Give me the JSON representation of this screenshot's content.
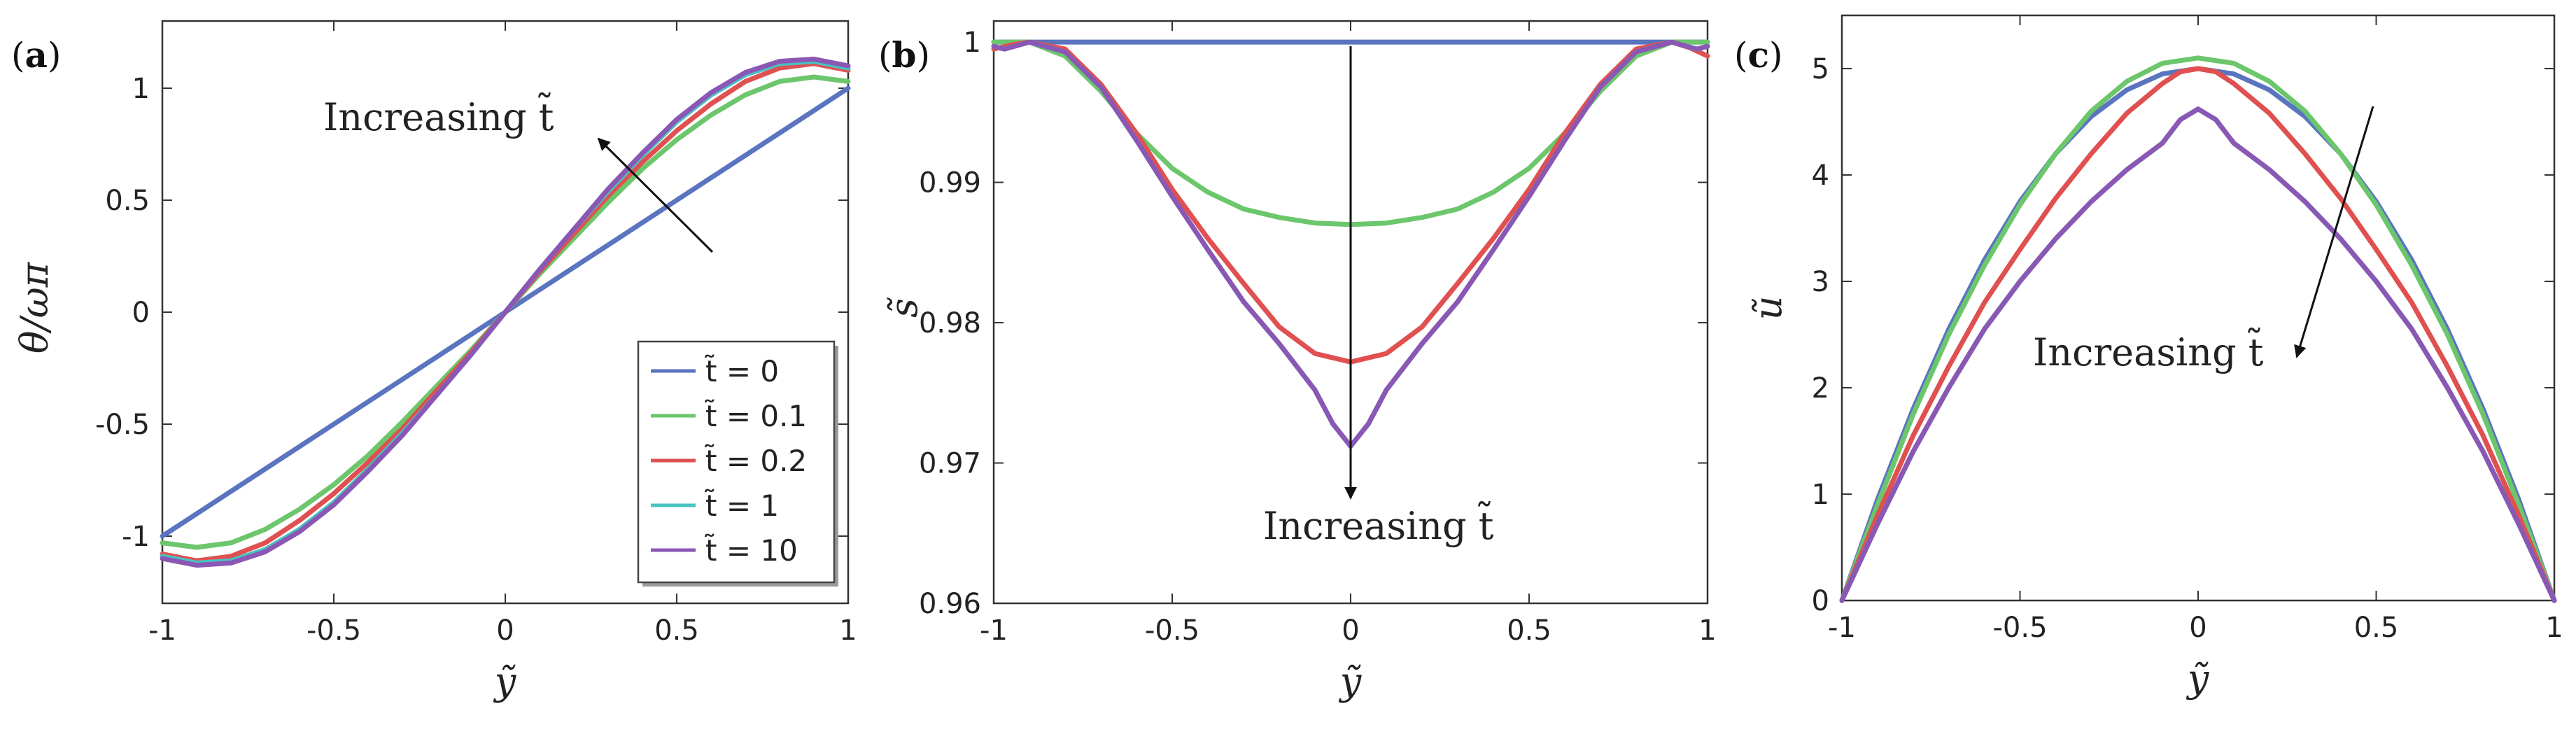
{
  "colors": {
    "t0": "#5a74c0",
    "t01": "#6cc66c",
    "t02": "#e05050",
    "t1": "#48c2c2",
    "t10": "#8a58b4",
    "arrow": "#111111"
  },
  "chart_data": [
    {
      "type": "line",
      "panel_label": "a",
      "ylabel": "θ/ωπ",
      "xlabel": "ỹ",
      "xlim": [
        -1,
        1
      ],
      "ylim": [
        -1.3,
        1.3
      ],
      "xticks": [
        "-1",
        "-0.5",
        "0",
        "0.5",
        "1"
      ],
      "yticks": [
        "-1",
        "-0.5",
        "0",
        "0.5",
        "1"
      ],
      "annotation": "Increasing t̃",
      "legend": [
        "t̃ = 0",
        "t̃ = 0.1",
        "t̃ = 0.2",
        "t̃ = 1",
        "t̃ = 10"
      ],
      "series": [
        {
          "name": "t̃ = 0",
          "color_key": "t0",
          "x": [
            -1,
            -0.5,
            0,
            0.5,
            1
          ],
          "y": [
            -1,
            -0.5,
            0,
            0.5,
            1
          ]
        },
        {
          "name": "t̃ = 0.1",
          "color_key": "t01",
          "x": [
            -1,
            -0.9,
            -0.8,
            -0.7,
            -0.6,
            -0.5,
            -0.4,
            -0.3,
            -0.2,
            -0.1,
            0,
            0.1,
            0.2,
            0.3,
            0.4,
            0.5,
            0.6,
            0.7,
            0.8,
            0.9,
            1
          ],
          "y": [
            -1.03,
            -1.05,
            -1.03,
            -0.97,
            -0.88,
            -0.77,
            -0.64,
            -0.49,
            -0.33,
            -0.17,
            0,
            0.17,
            0.33,
            0.49,
            0.64,
            0.77,
            0.88,
            0.97,
            1.03,
            1.05,
            1.03
          ]
        },
        {
          "name": "t̃ = 0.2",
          "color_key": "t02",
          "x": [
            -1,
            -0.9,
            -0.8,
            -0.7,
            -0.6,
            -0.5,
            -0.4,
            -0.3,
            -0.2,
            -0.1,
            0,
            0.1,
            0.2,
            0.3,
            0.4,
            0.5,
            0.6,
            0.7,
            0.8,
            0.9,
            1
          ],
          "y": [
            -1.08,
            -1.11,
            -1.09,
            -1.03,
            -0.93,
            -0.81,
            -0.67,
            -0.52,
            -0.35,
            -0.18,
            0,
            0.18,
            0.35,
            0.52,
            0.67,
            0.81,
            0.93,
            1.03,
            1.09,
            1.11,
            1.08
          ]
        },
        {
          "name": "t̃ = 1",
          "color_key": "t1",
          "x": [
            -1,
            -0.9,
            -0.8,
            -0.7,
            -0.6,
            -0.5,
            -0.4,
            -0.3,
            -0.2,
            -0.1,
            0,
            0.1,
            0.2,
            0.3,
            0.4,
            0.5,
            0.6,
            0.7,
            0.8,
            0.9,
            1
          ],
          "y": [
            -1.09,
            -1.12,
            -1.11,
            -1.06,
            -0.97,
            -0.85,
            -0.7,
            -0.54,
            -0.37,
            -0.19,
            0,
            0.19,
            0.37,
            0.54,
            0.7,
            0.85,
            0.97,
            1.06,
            1.11,
            1.12,
            1.09
          ]
        },
        {
          "name": "t̃ = 10",
          "color_key": "t10",
          "x": [
            -1,
            -0.9,
            -0.8,
            -0.7,
            -0.6,
            -0.5,
            -0.4,
            -0.3,
            -0.2,
            -0.1,
            0,
            0.1,
            0.2,
            0.3,
            0.4,
            0.5,
            0.6,
            0.7,
            0.8,
            0.9,
            1
          ],
          "y": [
            -1.1,
            -1.13,
            -1.12,
            -1.07,
            -0.98,
            -0.86,
            -0.71,
            -0.55,
            -0.37,
            -0.19,
            0,
            0.19,
            0.37,
            0.55,
            0.71,
            0.86,
            0.98,
            1.07,
            1.12,
            1.13,
            1.1
          ]
        }
      ]
    },
    {
      "type": "line",
      "panel_label": "b",
      "ylabel": "s̃",
      "xlabel": "ỹ",
      "xlim": [
        -1,
        1
      ],
      "ylim": [
        0.96,
        1.0015
      ],
      "xticks": [
        "-1",
        "-0.5",
        "0",
        "0.5",
        "1"
      ],
      "yticks": [
        "0.96",
        "0.97",
        "0.98",
        "0.99",
        "1"
      ],
      "annotation": "Increasing t̃",
      "series": [
        {
          "name": "t̃ = 0",
          "color_key": "t0",
          "x": [
            -1,
            1
          ],
          "y": [
            1,
            1
          ]
        },
        {
          "name": "t̃ = 0.1",
          "color_key": "t01",
          "x": [
            -1,
            -0.9,
            -0.8,
            -0.7,
            -0.6,
            -0.5,
            -0.4,
            -0.3,
            -0.2,
            -0.1,
            0,
            0.1,
            0.2,
            0.3,
            0.4,
            0.5,
            0.6,
            0.7,
            0.8,
            0.9,
            1
          ],
          "y": [
            1.0,
            1.0,
            0.999,
            0.9965,
            0.9935,
            0.991,
            0.9893,
            0.9881,
            0.9875,
            0.9871,
            0.987,
            0.9871,
            0.9875,
            0.9881,
            0.9893,
            0.991,
            0.9935,
            0.9965,
            0.999,
            1.0,
            1.0
          ]
        },
        {
          "name": "t̃ = 0.2",
          "color_key": "t02",
          "x": [
            -1,
            -0.95,
            -0.9,
            -0.8,
            -0.7,
            -0.6,
            -0.5,
            -0.4,
            -0.3,
            -0.2,
            -0.1,
            0,
            0.1,
            0.2,
            0.3,
            0.4,
            0.5,
            0.6,
            0.7,
            0.8,
            0.9,
            0.95,
            1
          ],
          "y": [
            0.9995,
            0.9998,
            1.0,
            0.9995,
            0.997,
            0.9935,
            0.9895,
            0.986,
            0.9828,
            0.9797,
            0.9778,
            0.9772,
            0.9778,
            0.9797,
            0.9828,
            0.986,
            0.9895,
            0.9935,
            0.997,
            0.9995,
            1.0,
            0.9996,
            0.999
          ]
        },
        {
          "name": "t̃ = 1",
          "color_key": "t1",
          "x": [
            -1,
            -0.97,
            -0.9,
            -0.8,
            -0.7,
            -0.6,
            -0.5,
            -0.4,
            -0.3,
            -0.2,
            -0.1,
            -0.05,
            0,
            0.05,
            0.1,
            0.2,
            0.3,
            0.4,
            0.5,
            0.6,
            0.7,
            0.8,
            0.9,
            0.97,
            1
          ],
          "y": [
            0.9997,
            0.9995,
            1.0,
            0.9993,
            0.9968,
            0.993,
            0.989,
            0.9852,
            0.9815,
            0.9785,
            0.9752,
            0.9728,
            0.9712,
            0.9728,
            0.9752,
            0.9785,
            0.9815,
            0.9852,
            0.989,
            0.993,
            0.9968,
            0.9993,
            1.0,
            0.9995,
            0.9997
          ]
        },
        {
          "name": "t̃ = 10",
          "color_key": "t10",
          "x": [
            -1,
            -0.97,
            -0.9,
            -0.8,
            -0.7,
            -0.6,
            -0.5,
            -0.4,
            -0.3,
            -0.2,
            -0.1,
            -0.05,
            0,
            0.05,
            0.1,
            0.2,
            0.3,
            0.4,
            0.5,
            0.6,
            0.7,
            0.8,
            0.9,
            0.97,
            1
          ],
          "y": [
            0.9997,
            0.9995,
            1.0,
            0.9993,
            0.9968,
            0.993,
            0.989,
            0.9852,
            0.9815,
            0.9785,
            0.9752,
            0.9728,
            0.9712,
            0.9728,
            0.9752,
            0.9785,
            0.9815,
            0.9852,
            0.989,
            0.993,
            0.9968,
            0.9993,
            1.0,
            0.9995,
            0.9997
          ]
        }
      ]
    },
    {
      "type": "line",
      "panel_label": "c",
      "ylabel": "ũ",
      "xlabel": "ỹ",
      "xlim": [
        -1,
        1
      ],
      "ylim": [
        0,
        5.5
      ],
      "xticks": [
        "-1",
        "-0.5",
        "0",
        "0.5",
        "1"
      ],
      "yticks": [
        "0",
        "1",
        "2",
        "3",
        "4",
        "5"
      ],
      "annotation": "Increasing t̃",
      "series": [
        {
          "name": "t̃ = 0",
          "color_key": "t0",
          "x": [
            -1,
            -0.9,
            -0.8,
            -0.7,
            -0.6,
            -0.5,
            -0.4,
            -0.3,
            -0.2,
            -0.1,
            0,
            0.1,
            0.2,
            0.3,
            0.4,
            0.5,
            0.6,
            0.7,
            0.8,
            0.9,
            1
          ],
          "y": [
            0,
            0.95,
            1.8,
            2.55,
            3.2,
            3.75,
            4.2,
            4.55,
            4.8,
            4.95,
            5.0,
            4.95,
            4.8,
            4.55,
            4.2,
            3.75,
            3.2,
            2.55,
            1.8,
            0.95,
            0
          ]
        },
        {
          "name": "t̃ = 0.1",
          "color_key": "t01",
          "x": [
            -1,
            -0.9,
            -0.8,
            -0.7,
            -0.6,
            -0.5,
            -0.4,
            -0.3,
            -0.2,
            -0.1,
            0,
            0.1,
            0.2,
            0.3,
            0.4,
            0.5,
            0.6,
            0.7,
            0.8,
            0.9,
            1
          ],
          "y": [
            0,
            0.9,
            1.75,
            2.5,
            3.15,
            3.72,
            4.2,
            4.6,
            4.88,
            5.05,
            5.1,
            5.05,
            4.88,
            4.6,
            4.2,
            3.72,
            3.15,
            2.5,
            1.75,
            0.9,
            0
          ]
        },
        {
          "name": "t̃ = 0.2",
          "color_key": "t02",
          "x": [
            -1,
            -0.9,
            -0.8,
            -0.7,
            -0.6,
            -0.5,
            -0.4,
            -0.3,
            -0.2,
            -0.1,
            -0.05,
            0,
            0.05,
            0.1,
            0.2,
            0.3,
            0.4,
            0.5,
            0.6,
            0.7,
            0.8,
            0.9,
            1
          ],
          "y": [
            0,
            0.8,
            1.55,
            2.2,
            2.8,
            3.3,
            3.78,
            4.2,
            4.58,
            4.86,
            4.97,
            5.0,
            4.97,
            4.86,
            4.58,
            4.2,
            3.78,
            3.3,
            2.8,
            2.2,
            1.55,
            0.8,
            0
          ]
        },
        {
          "name": "t̃ = 1",
          "color_key": "t1",
          "x": [
            -1,
            -0.9,
            -0.8,
            -0.7,
            -0.6,
            -0.5,
            -0.4,
            -0.3,
            -0.2,
            -0.1,
            -0.05,
            0,
            0.05,
            0.1,
            0.2,
            0.3,
            0.4,
            0.5,
            0.6,
            0.7,
            0.8,
            0.9,
            1
          ],
          "y": [
            0,
            0.72,
            1.4,
            2.0,
            2.55,
            3.0,
            3.4,
            3.75,
            4.05,
            4.3,
            4.52,
            4.62,
            4.52,
            4.3,
            4.05,
            3.75,
            3.4,
            3.0,
            2.55,
            2.0,
            1.4,
            0.72,
            0
          ]
        },
        {
          "name": "t̃ = 10",
          "color_key": "t10",
          "x": [
            -1,
            -0.9,
            -0.8,
            -0.7,
            -0.6,
            -0.5,
            -0.4,
            -0.3,
            -0.2,
            -0.1,
            -0.05,
            0,
            0.05,
            0.1,
            0.2,
            0.3,
            0.4,
            0.5,
            0.6,
            0.7,
            0.8,
            0.9,
            1
          ],
          "y": [
            0,
            0.72,
            1.4,
            2.0,
            2.55,
            3.0,
            3.4,
            3.75,
            4.05,
            4.3,
            4.52,
            4.62,
            4.52,
            4.3,
            4.05,
            3.75,
            3.4,
            3.0,
            2.55,
            2.0,
            1.4,
            0.72,
            0
          ]
        }
      ]
    }
  ]
}
